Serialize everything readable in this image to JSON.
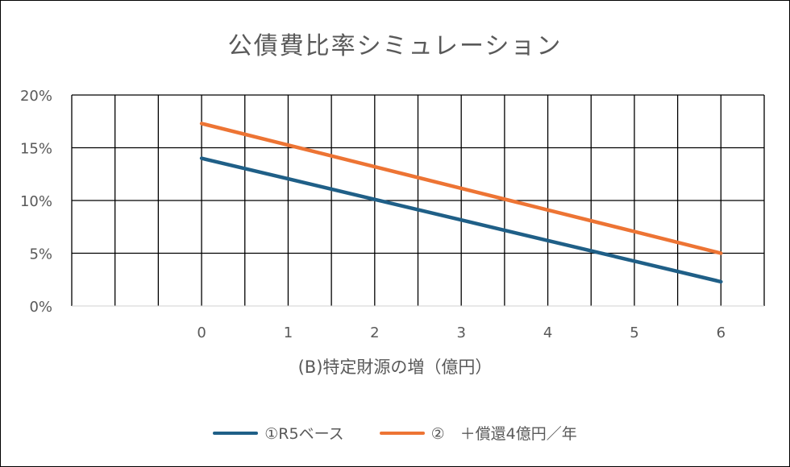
{
  "chart_data": {
    "type": "line",
    "title": "公債費比率シミュレーション",
    "xlabel": "(B)特定財源の増（億円）",
    "ylabel": "",
    "x": [
      0,
      1,
      2,
      3,
      4,
      5,
      6
    ],
    "xlim": [
      -1.5,
      6.5
    ],
    "ylim": [
      0,
      20
    ],
    "y_ticks": [
      0,
      5,
      10,
      15,
      20
    ],
    "y_tick_labels": [
      "0%",
      "5%",
      "10%",
      "15%",
      "20%"
    ],
    "grid": true,
    "legend_position": "bottom",
    "series": [
      {
        "name": "①R5ベース",
        "color": "#1f5f87",
        "values": [
          14.0,
          12.05,
          10.1,
          8.15,
          6.2,
          4.25,
          2.3
        ]
      },
      {
        "name": "②　＋償還4億円／年",
        "color": "#ed7434",
        "values": [
          17.3,
          15.25,
          13.2,
          11.15,
          9.1,
          7.05,
          5.0
        ]
      }
    ]
  }
}
